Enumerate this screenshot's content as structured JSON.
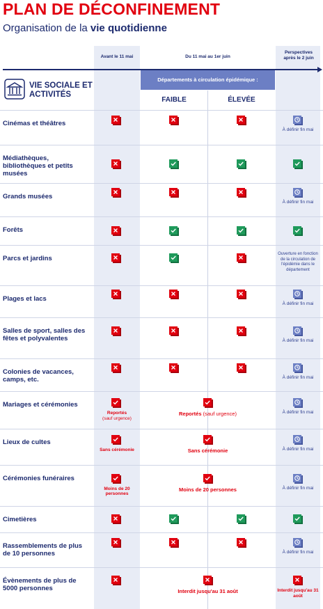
{
  "header": {
    "title": "PLAN DE DÉCONFINEMENT",
    "subtitle_prefix": "Organisation de la ",
    "subtitle_bold": "vie quotidienne"
  },
  "columns": {
    "before": "Avant le 11 mai",
    "during": "Du 11 mai au 1er juin",
    "after": "Perspectives après le 2 juin",
    "epi_band": "Départements à circulation épidémique :",
    "faible": "FAIBLE",
    "elevee": "ÉLEVÉE"
  },
  "section": {
    "title": "VIE SOCIALE ET ACTIVITÉS",
    "icon": "museum-building-icon"
  },
  "status_legend": {
    "closed": "red-cross-icon",
    "open": "green-check-icon",
    "pending": "clock-icon",
    "colors": {
      "red": "#e1000f",
      "green": "#1f9a5b",
      "blue": "#6c7fc4"
    }
  },
  "rows": [
    {
      "label": "Cinémas et théâtres",
      "before": "closed",
      "faible": "closed",
      "elevee": "closed",
      "after": "pending",
      "after_note": "À définir fin mai"
    },
    {
      "label": "Médiathèques, bibliothèques et petits musées",
      "before": "closed",
      "faible": "open",
      "elevee": "open",
      "after": "open"
    },
    {
      "label": "Grands musées",
      "before": "closed",
      "faible": "closed",
      "elevee": "closed",
      "after": "pending",
      "after_note": "À définir fin mai"
    },
    {
      "label": "Forêts",
      "before": "closed",
      "faible": "open",
      "elevee": "open",
      "after": "open"
    },
    {
      "label": "Parcs et jardins",
      "before": "closed",
      "faible": "open",
      "elevee": "closed",
      "after_note": "Ouverture en fonction de la circulation de l'épidémie dans le département"
    },
    {
      "label": "Plages et lacs",
      "before": "closed",
      "faible": "closed",
      "elevee": "closed",
      "after": "pending",
      "after_note": "À définir fin mai"
    },
    {
      "label": "Salles de sport, salles des fêtes et polyvalentes",
      "before": "closed",
      "faible": "closed",
      "elevee": "closed",
      "after": "pending",
      "after_note": "À définir fin mai"
    },
    {
      "label": "Colonies de vacances, camps, etc.",
      "before": "closed",
      "faible": "closed",
      "elevee": "closed",
      "after": "pending",
      "after_note": "À définir fin mai"
    },
    {
      "label": "Mariages et cérémonies",
      "before": "open_red",
      "before_note": "Reportés",
      "before_note2": "(sauf urgence)",
      "span": "open_red",
      "span_note_bold": "Reportés",
      "span_note": " (sauf urgence)",
      "after": "pending",
      "after_note": "À définir fin mai"
    },
    {
      "label": "Lieux de cultes",
      "before": "open_red",
      "before_note": "Sans cérémonie",
      "span": "open_red",
      "span_note_bold": "Sans cérémonie",
      "after": "pending",
      "after_note": "À définir fin mai"
    },
    {
      "label": "Cérémonies funéraires",
      "before": "open_red",
      "before_note": "Moins de 20 personnes",
      "span": "open_red",
      "span_note_bold": "Moins de 20 personnes",
      "after": "pending",
      "after_note": "À définir fin mai"
    },
    {
      "label": "Cimetières",
      "before": "closed",
      "faible": "open",
      "elevee": "open",
      "after": "open"
    },
    {
      "label": "Rassemblements de plus de 10 personnes",
      "before": "closed",
      "faible": "closed",
      "elevee": "closed",
      "after": "pending",
      "after_note": "À définir fin mai"
    },
    {
      "label": "Évènements de plus de 5000 personnes",
      "before": "closed",
      "span": "closed",
      "span_note_bold": "Interdit jusqu'au 31 août",
      "after": "closed",
      "after_note_red": "Interdit jusqu'au 31 août"
    }
  ]
}
